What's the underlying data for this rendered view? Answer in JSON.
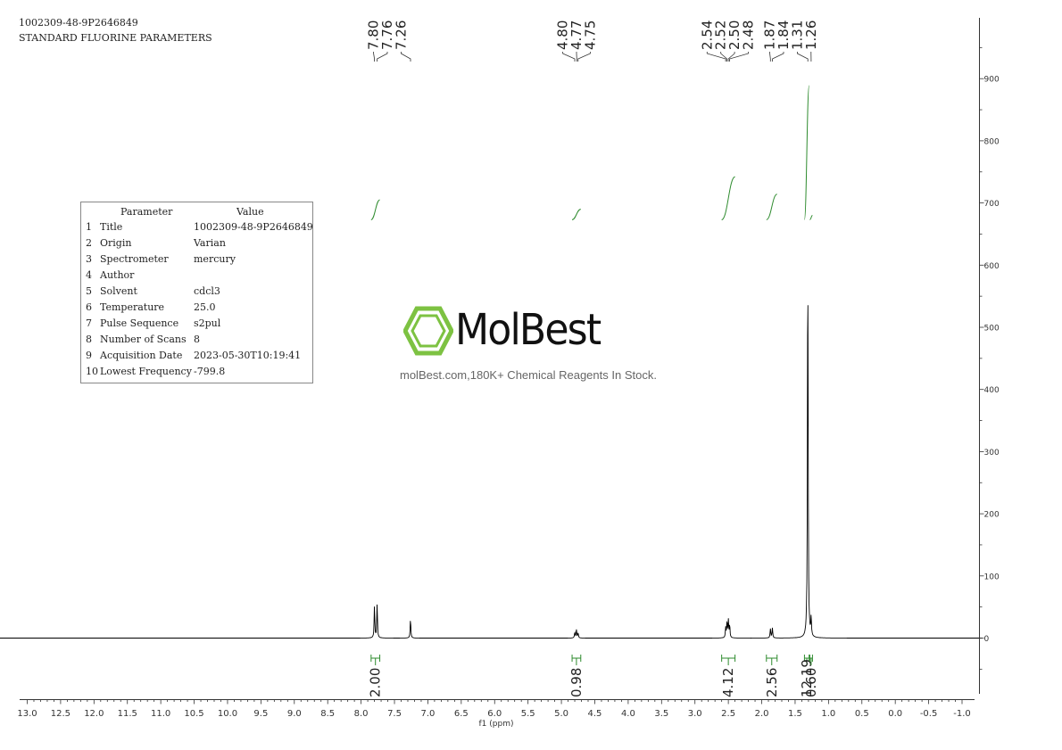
{
  "header": {
    "sample_id": "1002309-48-9P2646849",
    "experiment": "STANDARD FLUORINE PARAMETERS"
  },
  "parameter_table": {
    "col_parameter": "Parameter",
    "col_value": "Value",
    "rows": [
      {
        "num": "1",
        "param": "Title",
        "value": "1002309-48-9P2646849"
      },
      {
        "num": "2",
        "param": "Origin",
        "value": "Varian"
      },
      {
        "num": "3",
        "param": "Spectrometer",
        "value": "mercury"
      },
      {
        "num": "4",
        "param": "Author",
        "value": ""
      },
      {
        "num": "5",
        "param": "Solvent",
        "value": "cdcl3"
      },
      {
        "num": "6",
        "param": "Temperature",
        "value": "25.0"
      },
      {
        "num": "7",
        "param": "Pulse Sequence",
        "value": "s2pul"
      },
      {
        "num": "8",
        "param": "Number of Scans",
        "value": "8"
      },
      {
        "num": "9",
        "param": "Acquisition Date",
        "value": "2023-05-30T10:19:41"
      },
      {
        "num": "10",
        "param": "Lowest Frequency",
        "value": "-799.8"
      }
    ]
  },
  "watermark": {
    "brand": "MolBest",
    "tagline": "molBest.com,180K+ Chemical Reagents In Stock.",
    "color": "#7dc242"
  },
  "chart_data": {
    "type": "line",
    "title": "",
    "xlabel": "f1 (ppm)",
    "ylabel": "",
    "x_reversed": true,
    "xlim": [
      13.0,
      -1.0
    ],
    "ylim": [
      -80,
      980
    ],
    "x_ticks": [
      "13.0",
      "12.5",
      "12.0",
      "11.5",
      "11.0",
      "10.5",
      "10.0",
      "9.5",
      "9.0",
      "8.5",
      "8.0",
      "7.5",
      "7.0",
      "6.5",
      "6.0",
      "5.5",
      "5.0",
      "4.5",
      "4.0",
      "3.5",
      "3.0",
      "2.5",
      "2.0",
      "1.5",
      "1.0",
      "0.5",
      "0.0",
      "-0.5",
      "-1.0"
    ],
    "y_ticks": [
      0,
      100,
      200,
      300,
      400,
      500,
      600,
      700,
      800,
      900
    ],
    "spectrum_color": "#000000",
    "integral_color": "#2e8b2e",
    "peaks": [
      {
        "ppm": 7.8,
        "height": 50
      },
      {
        "ppm": 7.76,
        "height": 53
      },
      {
        "ppm": 7.26,
        "height": 30
      },
      {
        "ppm": 4.8,
        "height": 9
      },
      {
        "ppm": 4.775,
        "height": 13
      },
      {
        "ppm": 4.75,
        "height": 8
      },
      {
        "ppm": 2.54,
        "height": 16
      },
      {
        "ppm": 2.52,
        "height": 25
      },
      {
        "ppm": 2.5,
        "height": 28
      },
      {
        "ppm": 2.48,
        "height": 20
      },
      {
        "ppm": 1.87,
        "height": 15
      },
      {
        "ppm": 1.84,
        "height": 16
      },
      {
        "ppm": 1.31,
        "height": 628
      },
      {
        "ppm": 1.26,
        "height": 30
      }
    ],
    "peak_labels": [
      {
        "group": [
          7.8,
          7.76,
          7.26
        ],
        "labels": [
          "7.80",
          "7.76",
          "7.26"
        ]
      },
      {
        "group": [
          4.8,
          4.77,
          4.75
        ],
        "labels": [
          "4.80",
          "4.77",
          "4.75"
        ]
      },
      {
        "group": [
          2.54,
          2.52,
          2.5,
          2.48
        ],
        "labels": [
          "2.54",
          "2.52",
          "2.50",
          "2.48"
        ]
      },
      {
        "group": [
          1.87,
          1.84,
          1.31,
          1.26
        ],
        "labels": [
          "1.87",
          "1.84",
          "1.31",
          "1.26"
        ]
      }
    ],
    "integrals": [
      {
        "from": 7.85,
        "to": 7.72,
        "value": "2.00",
        "curve_start": 673,
        "curve_end": 705
      },
      {
        "from": 4.84,
        "to": 4.71,
        "value": "0.98",
        "curve_start": 673,
        "curve_end": 690
      },
      {
        "from": 2.6,
        "to": 2.4,
        "value": "4.12",
        "curve_start": 673,
        "curve_end": 742
      },
      {
        "from": 1.93,
        "to": 1.77,
        "value": "2.56",
        "curve_start": 673,
        "curve_end": 714
      },
      {
        "from": 1.36,
        "to": 1.29,
        "value": "12.19",
        "curve_start": 673,
        "curve_end": 889
      },
      {
        "from": 1.28,
        "to": 1.24,
        "value": "0.60",
        "curve_start": 673,
        "curve_end": 680
      }
    ]
  }
}
